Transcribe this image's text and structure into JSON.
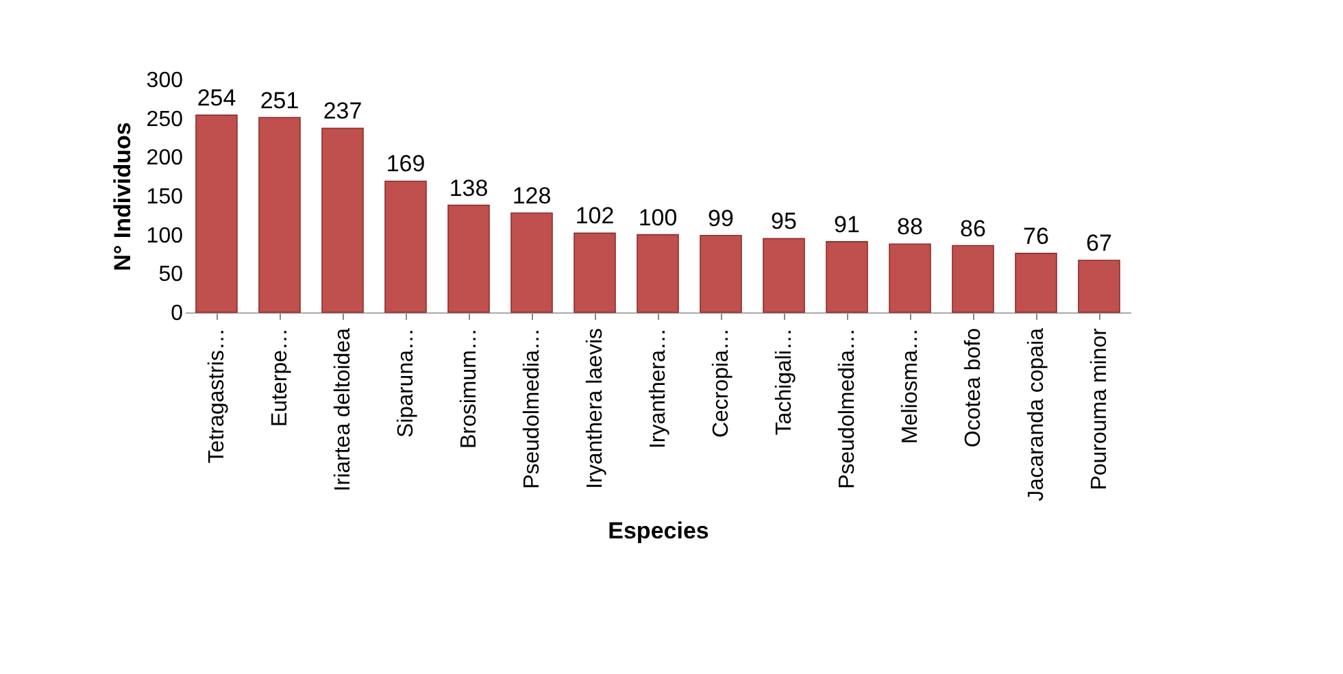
{
  "chart_data": {
    "type": "bar",
    "xlabel": "Especies",
    "ylabel": "N° Individuos",
    "categories": [
      "Tetragastris…",
      "Euterpe…",
      "Iriartea deltoidea",
      "Siparuna…",
      "Brosimum…",
      "Pseudolmedia…",
      "Iryanthera laevis",
      "Iryanthera…",
      "Cecropia…",
      "Tachigali…",
      "Pseudolmedia…",
      "Meliosma…",
      "Ocotea bofo",
      "Jacaranda copaia",
      "Pourouma minor"
    ],
    "values": [
      254,
      251,
      237,
      169,
      138,
      128,
      102,
      100,
      99,
      95,
      91,
      88,
      86,
      76,
      67
    ],
    "color": "#c0504d",
    "ylim": [
      0,
      300
    ],
    "yticks": [
      0,
      50,
      100,
      150,
      200,
      250,
      300
    ],
    "data_labels": true,
    "grid": false
  }
}
